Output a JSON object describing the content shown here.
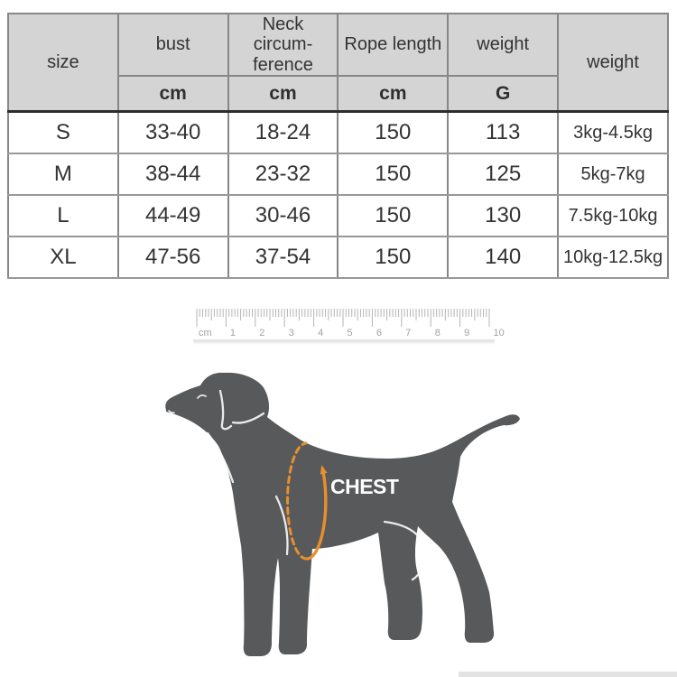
{
  "table": {
    "header": {
      "col_size": "size",
      "col_bust": "bust",
      "col_neck": "Neck circum-ference",
      "col_rope": "Rope length",
      "col_weight_g": "weight",
      "col_weight_range": "weight",
      "unit_cm_bust": "cm",
      "unit_cm_neck": "cm",
      "unit_cm_rope": "cm",
      "unit_g": "G"
    },
    "rows": [
      [
        "S",
        "33-40",
        "18-24",
        "150",
        "113",
        "3kg-4.5kg"
      ],
      [
        "M",
        "38-44",
        "23-32",
        "150",
        "125",
        "5kg-7kg"
      ],
      [
        "L",
        "44-49",
        "30-46",
        "150",
        "130",
        "7.5kg-10kg"
      ],
      [
        "XL",
        "47-56",
        "37-54",
        "150",
        "140",
        "10kg-12.5kg"
      ]
    ]
  },
  "ruler": {
    "unit_label": "cm",
    "tick_labels": [
      "1",
      "2",
      "3",
      "4",
      "5",
      "6",
      "7",
      "8",
      "9",
      "10"
    ]
  },
  "diagram": {
    "chest_label": "CHEST",
    "dog_color": "#58595b",
    "accent_color": "#e78f2e",
    "label_color": "#fdfdfd"
  },
  "colors": {
    "header_bg": "#d4d4d4",
    "table_border": "#878787",
    "text": "#333333"
  }
}
